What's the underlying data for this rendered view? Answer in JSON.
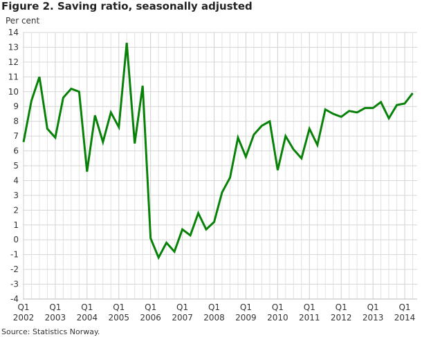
{
  "chart_data": {
    "type": "line",
    "title": "Figure 2. Saving ratio, seasonally adjusted",
    "ylabel": "Per cent",
    "xlabel": "",
    "source": "Source: Statistics Norway.",
    "ylim": [
      -4,
      14
    ],
    "yticks": [
      -4,
      -3,
      -2,
      -1,
      0,
      1,
      2,
      3,
      4,
      5,
      6,
      7,
      8,
      9,
      10,
      11,
      12,
      13,
      14
    ],
    "grid": true,
    "start": "2002Q1",
    "xtick_labels": [
      {
        "q": "Q1",
        "year": "2002"
      },
      {
        "q": "Q1",
        "year": "2003"
      },
      {
        "q": "Q1",
        "year": "2004"
      },
      {
        "q": "Q1",
        "year": "2005"
      },
      {
        "q": "Q1",
        "year": "2006"
      },
      {
        "q": "Q1",
        "year": "2007"
      },
      {
        "q": "Q1",
        "year": "2008"
      },
      {
        "q": "Q1",
        "year": "2009"
      },
      {
        "q": "Q1",
        "year": "2010"
      },
      {
        "q": "Q1",
        "year": "2011"
      },
      {
        "q": "Q1",
        "year": "2012"
      },
      {
        "q": "Q1",
        "year": "2013"
      },
      {
        "q": "Q1",
        "year": "2014"
      }
    ],
    "series": [
      {
        "name": "Saving ratio",
        "color": "#078107",
        "values": [
          6.6,
          9.4,
          11.0,
          7.5,
          6.9,
          9.6,
          10.2,
          10.0,
          4.6,
          8.4,
          6.6,
          8.6,
          7.6,
          13.3,
          6.5,
          10.4,
          0.1,
          -1.2,
          -0.2,
          -0.8,
          0.7,
          0.3,
          1.8,
          0.7,
          1.2,
          3.2,
          4.2,
          6.9,
          5.6,
          7.1,
          7.7,
          8.0,
          4.7,
          7.0,
          6.1,
          5.5,
          7.5,
          6.4,
          8.8,
          8.5,
          8.3,
          8.7,
          8.6,
          8.9,
          8.9,
          9.3,
          8.2,
          9.1,
          9.2,
          9.9
        ]
      }
    ]
  }
}
